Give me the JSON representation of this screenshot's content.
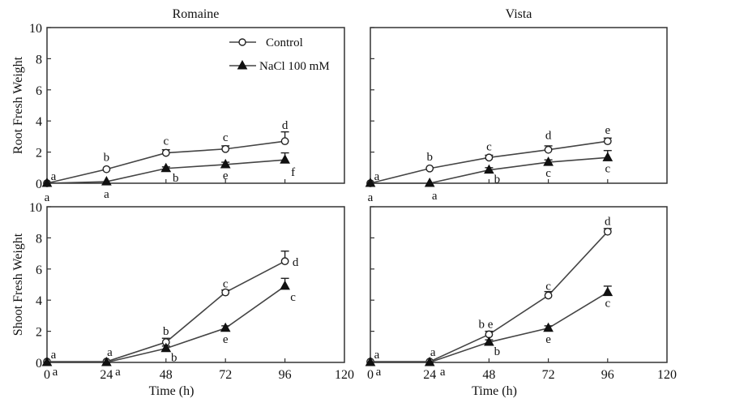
{
  "chart_data": [
    {
      "type": "line",
      "panel": "root-romaine",
      "title": "Romaine",
      "xlabel": "",
      "ylabel": "Root Fresh Weight",
      "xlim": [
        0,
        120
      ],
      "ylim": [
        0,
        10
      ],
      "x_ticks": [
        0,
        24,
        48,
        72,
        96,
        120
      ],
      "x_tick_labels_shown": false,
      "y_ticks": [
        0,
        2,
        4,
        6,
        8,
        10
      ],
      "y_tick_labels_shown": true,
      "legend": {
        "placement": "top-right",
        "entries": [
          "Control",
          "NaCl 100 mM"
        ]
      },
      "x": [
        0,
        24,
        48,
        72,
        96
      ],
      "series": [
        {
          "name": "Control",
          "marker": "open-circle",
          "values": [
            0,
            0.9,
            1.95,
            2.2,
            2.7
          ],
          "errors": [
            0,
            0,
            0.2,
            0.2,
            0.6
          ],
          "letters": [
            "a",
            "b",
            "c",
            "c",
            "d"
          ]
        },
        {
          "name": "NaCl 100 mM",
          "marker": "filled-triangle",
          "values": [
            0,
            0.1,
            0.95,
            1.2,
            1.5
          ],
          "errors": [
            0,
            0,
            0.1,
            0.15,
            0.45
          ],
          "letters": [
            "a",
            "a",
            "b",
            "e",
            "f"
          ]
        }
      ]
    },
    {
      "type": "line",
      "panel": "root-vista",
      "title": "Vista",
      "xlabel": "",
      "ylabel": "",
      "xlim": [
        0,
        120
      ],
      "ylim": [
        0,
        10
      ],
      "x_ticks": [
        0,
        24,
        48,
        72,
        96,
        120
      ],
      "x_tick_labels_shown": false,
      "y_ticks": [
        0,
        2,
        4,
        6,
        8,
        10
      ],
      "y_tick_labels_shown": false,
      "x": [
        0,
        24,
        48,
        72,
        96
      ],
      "series": [
        {
          "name": "Control",
          "marker": "open-circle",
          "values": [
            0,
            0.95,
            1.65,
            2.15,
            2.7
          ],
          "errors": [
            0,
            0,
            0.15,
            0.25,
            0.2
          ],
          "letters": [
            "a",
            "b",
            "c",
            "d",
            "e"
          ]
        },
        {
          "name": "NaCl 100 mM",
          "marker": "filled-triangle",
          "values": [
            0,
            0,
            0.85,
            1.35,
            1.65
          ],
          "errors": [
            0,
            0,
            0.15,
            0.15,
            0.45
          ],
          "letters": [
            "a",
            "a",
            "b",
            "c",
            "c"
          ]
        }
      ]
    },
    {
      "type": "line",
      "panel": "shoot-romaine",
      "title": "",
      "xlabel": "Time (h)",
      "ylabel": "Shoot Fresh Weight",
      "xlim": [
        0,
        120
      ],
      "ylim": [
        0,
        10
      ],
      "x_ticks": [
        0,
        24,
        48,
        72,
        96,
        120
      ],
      "x_tick_labels_shown": true,
      "y_ticks": [
        0,
        2,
        4,
        6,
        8,
        10
      ],
      "y_tick_labels_shown": true,
      "x": [
        0,
        24,
        48,
        72,
        96
      ],
      "series": [
        {
          "name": "Control",
          "marker": "open-circle",
          "values": [
            0.05,
            0.05,
            1.3,
            4.5,
            6.5
          ],
          "errors": [
            0,
            0,
            0.25,
            0.15,
            0.65
          ],
          "letters": [
            "a",
            "a",
            "b",
            "c",
            "d"
          ]
        },
        {
          "name": "NaCl 100 mM",
          "marker": "filled-triangle",
          "values": [
            0,
            0,
            0.9,
            2.2,
            4.9
          ],
          "errors": [
            0,
            0,
            0.15,
            0.15,
            0.5
          ],
          "letters": [
            "a",
            "a",
            "b",
            "e",
            "c"
          ]
        }
      ]
    },
    {
      "type": "line",
      "panel": "shoot-vista",
      "title": "",
      "xlabel": "Time (h)",
      "ylabel": "",
      "xlim": [
        0,
        120
      ],
      "ylim": [
        0,
        10
      ],
      "x_ticks": [
        0,
        24,
        48,
        72,
        96,
        120
      ],
      "x_tick_labels_shown": true,
      "y_ticks": [
        0,
        2,
        4,
        6,
        8,
        10
      ],
      "y_tick_labels_shown": false,
      "x": [
        0,
        24,
        48,
        72,
        96
      ],
      "series": [
        {
          "name": "Control",
          "marker": "open-circle",
          "values": [
            0.05,
            0.05,
            1.8,
            4.3,
            8.4
          ],
          "errors": [
            0,
            0,
            0.2,
            0.25,
            0.2
          ],
          "letters": [
            "a",
            "a",
            "b e",
            "c",
            "d"
          ]
        },
        {
          "name": "NaCl 100 mM",
          "marker": "filled-triangle",
          "values": [
            0,
            0,
            1.3,
            2.2,
            4.5
          ],
          "errors": [
            0,
            0,
            0.15,
            0.15,
            0.4
          ],
          "letters": [
            "a",
            "a",
            "b",
            "e",
            "c"
          ]
        }
      ]
    }
  ]
}
